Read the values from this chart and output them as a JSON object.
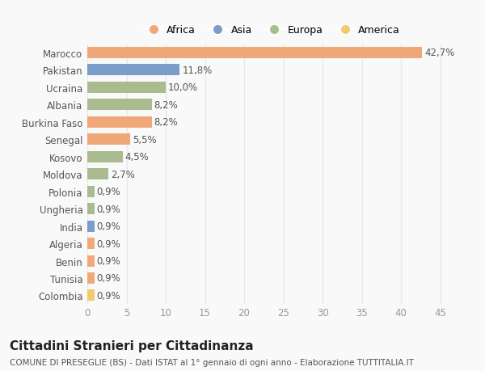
{
  "countries": [
    "Marocco",
    "Pakistan",
    "Ucraina",
    "Albania",
    "Burkina Faso",
    "Senegal",
    "Kosovo",
    "Moldova",
    "Polonia",
    "Ungheria",
    "India",
    "Algeria",
    "Benin",
    "Tunisia",
    "Colombia"
  ],
  "values": [
    42.7,
    11.8,
    10.0,
    8.2,
    8.2,
    5.5,
    4.5,
    2.7,
    0.9,
    0.9,
    0.9,
    0.9,
    0.9,
    0.9,
    0.9
  ],
  "continents": [
    "Africa",
    "Asia",
    "Europa",
    "Europa",
    "Africa",
    "Africa",
    "Europa",
    "Europa",
    "Europa",
    "Europa",
    "Asia",
    "Africa",
    "Africa",
    "Africa",
    "America"
  ],
  "colors": {
    "Africa": "#F0A878",
    "Asia": "#7B9DC9",
    "Europa": "#A8BC8F",
    "America": "#F0CC6E"
  },
  "legend_order": [
    "Africa",
    "Asia",
    "Europa",
    "America"
  ],
  "title": "Cittadini Stranieri per Cittadinanza",
  "subtitle": "COMUNE DI PRESEGLIE (BS) - Dati ISTAT al 1° gennaio di ogni anno - Elaborazione TUTTITALIA.IT",
  "xlim": [
    0,
    47
  ],
  "xticks": [
    0,
    5,
    10,
    15,
    20,
    25,
    30,
    35,
    40,
    45
  ],
  "background_color": "#f9f9f9",
  "grid_color": "#e8e8e8",
  "bar_height": 0.65,
  "label_fontsize": 8.5,
  "tick_fontsize": 8.5,
  "title_fontsize": 11,
  "subtitle_fontsize": 7.5
}
